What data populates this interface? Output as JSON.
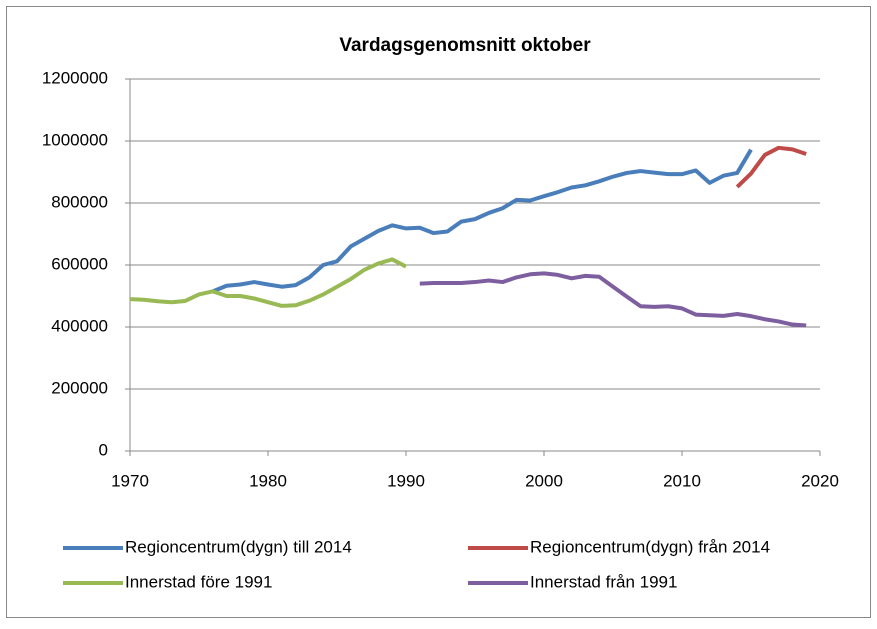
{
  "chart_data": {
    "type": "line",
    "title": "Vardagsgenomsnitt oktober",
    "xlim": [
      1970,
      2020
    ],
    "xticks": [
      1970,
      1980,
      1990,
      2000,
      2010,
      2020
    ],
    "ylim": [
      0,
      1200000
    ],
    "yticks": [
      0,
      200000,
      400000,
      600000,
      800000,
      1000000,
      1200000
    ],
    "grid": true,
    "legend": "bottom",
    "series": [
      {
        "name": "Regioncentrum(dygn) till 2014",
        "color": "#4a7ebb",
        "x": [
          1976,
          1977,
          1978,
          1979,
          1980,
          1981,
          1982,
          1983,
          1984,
          1985,
          1986,
          1987,
          1988,
          1989,
          1990,
          1991,
          1992,
          1993,
          1994,
          1995,
          1996,
          1997,
          1998,
          1999,
          2000,
          2001,
          2002,
          2003,
          2004,
          2005,
          2006,
          2007,
          2008,
          2009,
          2010,
          2011,
          2012,
          2013,
          2014,
          2015
        ],
        "values": [
          515000,
          533000,
          537000,
          545000,
          537000,
          530000,
          535000,
          560000,
          600000,
          612000,
          660000,
          685000,
          710000,
          728000,
          718000,
          720000,
          703000,
          708000,
          740000,
          748000,
          768000,
          783000,
          810000,
          808000,
          822000,
          835000,
          850000,
          857000,
          870000,
          885000,
          897000,
          903000,
          898000,
          893000,
          893000,
          905000,
          865000,
          888000,
          897000,
          972000
        ]
      },
      {
        "name": "Regioncentrum(dygn) från 2014",
        "color": "#be4b48",
        "x": [
          2014,
          2015,
          2016,
          2017,
          2018,
          2019
        ],
        "values": [
          852000,
          895000,
          955000,
          978000,
          973000,
          958000
        ]
      },
      {
        "name": "Innerstad före 1991",
        "color": "#98b954",
        "x": [
          1970,
          1971,
          1972,
          1973,
          1974,
          1975,
          1976,
          1977,
          1978,
          1979,
          1980,
          1981,
          1982,
          1983,
          1984,
          1985,
          1986,
          1987,
          1988,
          1989,
          1990
        ],
        "values": [
          490000,
          488000,
          483000,
          480000,
          484000,
          505000,
          515000,
          500000,
          500000,
          492000,
          480000,
          468000,
          470000,
          485000,
          505000,
          530000,
          555000,
          585000,
          605000,
          618000,
          595000
        ]
      },
      {
        "name": "Innerstad från 1991",
        "color": "#7d5fa0",
        "x": [
          1991,
          1992,
          1993,
          1994,
          1995,
          1996,
          1997,
          1998,
          1999,
          2000,
          2001,
          2002,
          2003,
          2004,
          2005,
          2006,
          2007,
          2008,
          2009,
          2010,
          2011,
          2012,
          2013,
          2014,
          2015,
          2016,
          2017,
          2018,
          2019
        ],
        "values": [
          540000,
          542000,
          542000,
          542000,
          545000,
          550000,
          545000,
          560000,
          570000,
          573000,
          568000,
          557000,
          565000,
          562000,
          530000,
          498000,
          467000,
          465000,
          467000,
          460000,
          440000,
          438000,
          436000,
          442000,
          435000,
          425000,
          418000,
          408000,
          405000
        ]
      }
    ]
  }
}
